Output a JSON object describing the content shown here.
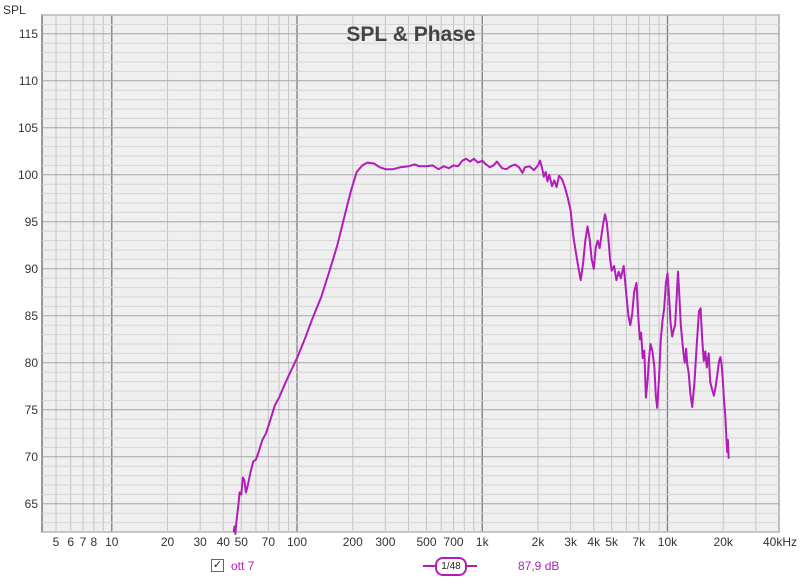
{
  "chart_data": {
    "type": "line",
    "title": "SPL & Phase",
    "ylabel": "SPL",
    "xlabel": "",
    "x_scale": "log",
    "xlim": [
      4.2,
      40000
    ],
    "ylim": [
      62,
      117
    ],
    "grid": true,
    "y_ticks": [
      65,
      70,
      75,
      80,
      85,
      90,
      95,
      100,
      105,
      110,
      115
    ],
    "x_ticks": [
      {
        "value": 5,
        "label": "5"
      },
      {
        "value": 6,
        "label": "6"
      },
      {
        "value": 7,
        "label": "7"
      },
      {
        "value": 8,
        "label": "8"
      },
      {
        "value": 10,
        "label": "10"
      },
      {
        "value": 20,
        "label": "20"
      },
      {
        "value": 30,
        "label": "30"
      },
      {
        "value": 40,
        "label": "40"
      },
      {
        "value": 50,
        "label": "50"
      },
      {
        "value": 70,
        "label": "70"
      },
      {
        "value": 100,
        "label": "100"
      },
      {
        "value": 200,
        "label": "200"
      },
      {
        "value": 300,
        "label": "300"
      },
      {
        "value": 500,
        "label": "500"
      },
      {
        "value": 700,
        "label": "700"
      },
      {
        "value": 1000,
        "label": "1k"
      },
      {
        "value": 2000,
        "label": "2k"
      },
      {
        "value": 3000,
        "label": "3k"
      },
      {
        "value": 4000,
        "label": "4k"
      },
      {
        "value": 5000,
        "label": "5k"
      },
      {
        "value": 7000,
        "label": "7k"
      },
      {
        "value": 10000,
        "label": "10k"
      },
      {
        "value": 20000,
        "label": "20k"
      },
      {
        "value": 40000,
        "label": "40kHz"
      }
    ],
    "series": [
      {
        "name": "ott 7",
        "color": "#b21cb8",
        "points": [
          [
            45.5,
            62
          ],
          [
            46,
            62.6
          ],
          [
            46.5,
            61.8
          ],
          [
            47,
            63
          ],
          [
            48,
            64.5
          ],
          [
            49,
            66.2
          ],
          [
            50,
            66.0
          ],
          [
            51,
            67.8
          ],
          [
            52,
            67.5
          ],
          [
            53,
            66.2
          ],
          [
            54,
            66.8
          ],
          [
            56,
            68.3
          ],
          [
            58,
            69.5
          ],
          [
            60,
            69.7
          ],
          [
            62,
            70.5
          ],
          [
            65,
            71.8
          ],
          [
            68,
            72.5
          ],
          [
            72,
            74.0
          ],
          [
            76,
            75.5
          ],
          [
            80,
            76.3
          ],
          [
            85,
            77.5
          ],
          [
            90,
            78.6
          ],
          [
            100,
            80.5
          ],
          [
            110,
            82.5
          ],
          [
            120,
            84.5
          ],
          [
            135,
            87.0
          ],
          [
            150,
            89.8
          ],
          [
            165,
            92.5
          ],
          [
            180,
            95.5
          ],
          [
            195,
            98.2
          ],
          [
            210,
            100.3
          ],
          [
            225,
            101.0
          ],
          [
            240,
            101.3
          ],
          [
            260,
            101.2
          ],
          [
            280,
            100.8
          ],
          [
            300,
            100.6
          ],
          [
            330,
            100.6
          ],
          [
            360,
            100.8
          ],
          [
            400,
            100.9
          ],
          [
            430,
            101.1
          ],
          [
            460,
            100.9
          ],
          [
            500,
            100.9
          ],
          [
            540,
            101.0
          ],
          [
            580,
            100.6
          ],
          [
            620,
            100.9
          ],
          [
            660,
            100.7
          ],
          [
            700,
            101.0
          ],
          [
            740,
            100.9
          ],
          [
            780,
            101.5
          ],
          [
            820,
            101.7
          ],
          [
            860,
            101.4
          ],
          [
            900,
            101.7
          ],
          [
            950,
            101.3
          ],
          [
            1000,
            101.5
          ],
          [
            1050,
            101.1
          ],
          [
            1100,
            100.8
          ],
          [
            1150,
            101.0
          ],
          [
            1200,
            101.4
          ],
          [
            1280,
            100.7
          ],
          [
            1350,
            100.6
          ],
          [
            1420,
            100.9
          ],
          [
            1500,
            101.1
          ],
          [
            1580,
            100.8
          ],
          [
            1650,
            100.2
          ],
          [
            1700,
            100.8
          ],
          [
            1800,
            100.9
          ],
          [
            1900,
            100.5
          ],
          [
            2000,
            101.0
          ],
          [
            2050,
            101.5
          ],
          [
            2100,
            100.8
          ],
          [
            2150,
            99.8
          ],
          [
            2200,
            100.3
          ],
          [
            2250,
            99.3
          ],
          [
            2300,
            100.0
          ],
          [
            2380,
            98.8
          ],
          [
            2450,
            99.4
          ],
          [
            2520,
            98.7
          ],
          [
            2600,
            99.9
          ],
          [
            2700,
            99.5
          ],
          [
            2800,
            98.6
          ],
          [
            2900,
            97.5
          ],
          [
            3000,
            96.2
          ],
          [
            3100,
            93.5
          ],
          [
            3200,
            91.8
          ],
          [
            3300,
            90.2
          ],
          [
            3400,
            88.8
          ],
          [
            3500,
            90.5
          ],
          [
            3600,
            93.0
          ],
          [
            3700,
            94.5
          ],
          [
            3800,
            93.2
          ],
          [
            3900,
            91.0
          ],
          [
            4000,
            90.0
          ],
          [
            4100,
            92.3
          ],
          [
            4200,
            93.0
          ],
          [
            4300,
            92.2
          ],
          [
            4400,
            93.5
          ],
          [
            4500,
            94.8
          ],
          [
            4600,
            95.8
          ],
          [
            4700,
            95.0
          ],
          [
            4800,
            93.2
          ],
          [
            4900,
            91.0
          ],
          [
            5000,
            89.8
          ],
          [
            5150,
            90.3
          ],
          [
            5300,
            88.8
          ],
          [
            5450,
            89.7
          ],
          [
            5600,
            89.0
          ],
          [
            5800,
            90.3
          ],
          [
            6000,
            87.2
          ],
          [
            6150,
            85.0
          ],
          [
            6300,
            84.0
          ],
          [
            6450,
            85.2
          ],
          [
            6600,
            87.5
          ],
          [
            6800,
            88.5
          ],
          [
            6950,
            85.0
          ],
          [
            7100,
            82.5
          ],
          [
            7200,
            83.2
          ],
          [
            7350,
            80.5
          ],
          [
            7500,
            81.3
          ],
          [
            7650,
            76.3
          ],
          [
            7800,
            78.0
          ],
          [
            7950,
            80.4
          ],
          [
            8100,
            82.0
          ],
          [
            8300,
            81.2
          ],
          [
            8500,
            79.5
          ],
          [
            8650,
            76.5
          ],
          [
            8800,
            75.2
          ],
          [
            9000,
            78.3
          ],
          [
            9200,
            82.5
          ],
          [
            9400,
            84.5
          ],
          [
            9600,
            85.8
          ],
          [
            9800,
            88.5
          ],
          [
            10000,
            89.5
          ],
          [
            10200,
            87.0
          ],
          [
            10400,
            84.2
          ],
          [
            10600,
            82.8
          ],
          [
            10800,
            83.5
          ],
          [
            11000,
            84.0
          ],
          [
            11200,
            86.8
          ],
          [
            11400,
            89.7
          ],
          [
            11600,
            87.0
          ],
          [
            11800,
            84.0
          ],
          [
            12000,
            82.5
          ],
          [
            12200,
            81.0
          ],
          [
            12400,
            80.0
          ],
          [
            12600,
            81.5
          ],
          [
            12800,
            79.8
          ],
          [
            13000,
            79.0
          ],
          [
            13300,
            76.7
          ],
          [
            13600,
            75.3
          ],
          [
            14000,
            78.0
          ],
          [
            14400,
            82.0
          ],
          [
            14800,
            85.5
          ],
          [
            15100,
            85.8
          ],
          [
            15400,
            82.5
          ],
          [
            15700,
            80.2
          ],
          [
            16000,
            81.2
          ],
          [
            16300,
            79.5
          ],
          [
            16700,
            81.0
          ],
          [
            17000,
            78.0
          ],
          [
            17400,
            77.2
          ],
          [
            17800,
            76.5
          ],
          [
            18200,
            77.5
          ],
          [
            18600,
            78.8
          ],
          [
            19000,
            80.2
          ],
          [
            19300,
            80.6
          ],
          [
            19600,
            79.8
          ],
          [
            19900,
            78.2
          ],
          [
            20200,
            76.0
          ],
          [
            20500,
            74.5
          ],
          [
            20800,
            72.0
          ],
          [
            21000,
            70.5
          ],
          [
            21200,
            71.8
          ],
          [
            21400,
            69.8
          ]
        ]
      }
    ]
  },
  "legend": {
    "checkbox_mark": "✓",
    "series_label": "ott 7",
    "smoothing_label": "1/48",
    "readout": "87,9 dB"
  }
}
